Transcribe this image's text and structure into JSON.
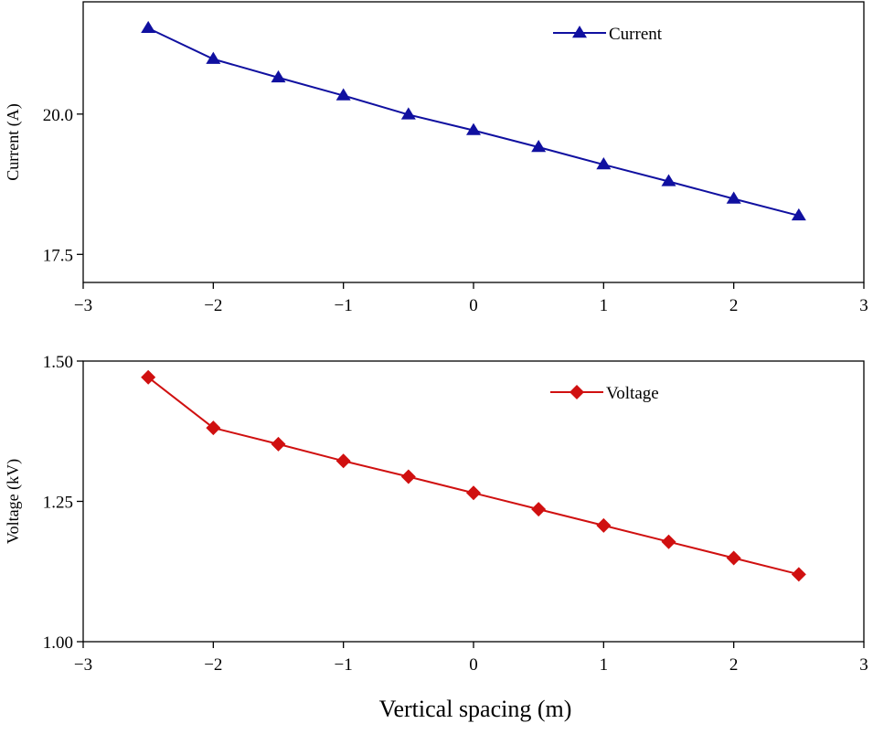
{
  "xlabel": "Vertical spacing (m)",
  "chart_data": [
    {
      "type": "line",
      "title": "",
      "xlabel": "",
      "ylabel": "Current (A)",
      "xlim": [
        -3,
        3
      ],
      "ylim": [
        17.0,
        22.0
      ],
      "xticks": [
        -3,
        -2,
        -1,
        0,
        1,
        2,
        3
      ],
      "xtick_labels": [
        "−3",
        "−2",
        "−1",
        "0",
        "1",
        "2",
        "3"
      ],
      "yticks": [
        17.5,
        20.0
      ],
      "ytick_labels": [
        "17.5",
        "20.0"
      ],
      "grid": false,
      "legend_position": "top-right",
      "series": [
        {
          "name": "Current",
          "color": "#1010a0",
          "marker": "triangle",
          "x": [
            -2.5,
            -2.0,
            -1.5,
            -1.0,
            -0.5,
            0.0,
            0.5,
            1.0,
            1.5,
            2.0,
            2.5
          ],
          "y": [
            21.53,
            20.98,
            20.65,
            20.33,
            19.99,
            19.71,
            19.41,
            19.1,
            18.8,
            18.49,
            18.19
          ]
        }
      ]
    },
    {
      "type": "line",
      "title": "",
      "xlabel": "",
      "ylabel": "Voltage (kV)",
      "xlim": [
        -3,
        3
      ],
      "ylim": [
        1.0,
        1.5
      ],
      "xticks": [
        -3,
        -2,
        -1,
        0,
        1,
        2,
        3
      ],
      "xtick_labels": [
        "−3",
        "−2",
        "−1",
        "0",
        "1",
        "2",
        "3"
      ],
      "yticks": [
        1.0,
        1.25,
        1.5
      ],
      "ytick_labels": [
        "1.00",
        "1.25",
        "1.50"
      ],
      "grid": false,
      "legend_position": "top-right",
      "series": [
        {
          "name": "Voltage",
          "color": "#d01010",
          "marker": "diamond",
          "x": [
            -2.5,
            -2.0,
            -1.5,
            -1.0,
            -0.5,
            0.0,
            0.5,
            1.0,
            1.5,
            2.0,
            2.5
          ],
          "y": [
            1.471,
            1.381,
            1.352,
            1.322,
            1.294,
            1.265,
            1.236,
            1.207,
            1.178,
            1.149,
            1.12
          ]
        }
      ]
    }
  ]
}
